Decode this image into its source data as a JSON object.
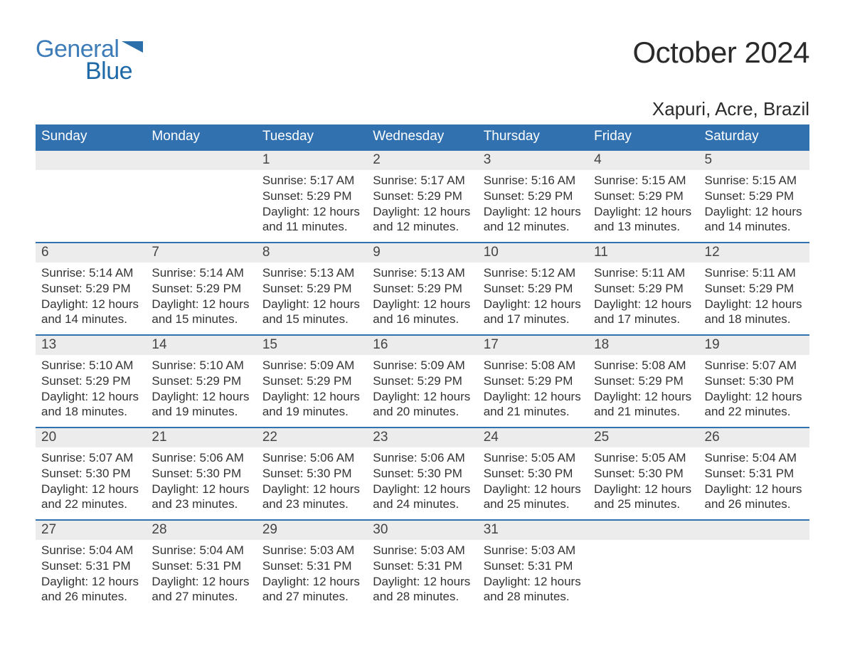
{
  "logo": {
    "word1": "General",
    "word2": "Blue",
    "flag_color": "#2a6fa9"
  },
  "title": "October 2024",
  "location": "Xapuri, Acre, Brazil",
  "colors": {
    "header_bg": "#3171b0",
    "header_text": "#ffffff",
    "daynum_bg": "#ececec",
    "daynum_border": "#3171b0",
    "text": "#333333",
    "page_bg": "#ffffff"
  },
  "day_headers": [
    "Sunday",
    "Monday",
    "Tuesday",
    "Wednesday",
    "Thursday",
    "Friday",
    "Saturday"
  ],
  "labels": {
    "sunrise": "Sunrise:",
    "sunset": "Sunset:",
    "daylight": "Daylight:"
  },
  "weeks": [
    [
      {
        "day": null
      },
      {
        "day": null
      },
      {
        "day": "1",
        "sunrise": "5:17 AM",
        "sunset": "5:29 PM",
        "daylight": "12 hours and 11 minutes."
      },
      {
        "day": "2",
        "sunrise": "5:17 AM",
        "sunset": "5:29 PM",
        "daylight": "12 hours and 12 minutes."
      },
      {
        "day": "3",
        "sunrise": "5:16 AM",
        "sunset": "5:29 PM",
        "daylight": "12 hours and 12 minutes."
      },
      {
        "day": "4",
        "sunrise": "5:15 AM",
        "sunset": "5:29 PM",
        "daylight": "12 hours and 13 minutes."
      },
      {
        "day": "5",
        "sunrise": "5:15 AM",
        "sunset": "5:29 PM",
        "daylight": "12 hours and 14 minutes."
      }
    ],
    [
      {
        "day": "6",
        "sunrise": "5:14 AM",
        "sunset": "5:29 PM",
        "daylight": "12 hours and 14 minutes."
      },
      {
        "day": "7",
        "sunrise": "5:14 AM",
        "sunset": "5:29 PM",
        "daylight": "12 hours and 15 minutes."
      },
      {
        "day": "8",
        "sunrise": "5:13 AM",
        "sunset": "5:29 PM",
        "daylight": "12 hours and 15 minutes."
      },
      {
        "day": "9",
        "sunrise": "5:13 AM",
        "sunset": "5:29 PM",
        "daylight": "12 hours and 16 minutes."
      },
      {
        "day": "10",
        "sunrise": "5:12 AM",
        "sunset": "5:29 PM",
        "daylight": "12 hours and 17 minutes."
      },
      {
        "day": "11",
        "sunrise": "5:11 AM",
        "sunset": "5:29 PM",
        "daylight": "12 hours and 17 minutes."
      },
      {
        "day": "12",
        "sunrise": "5:11 AM",
        "sunset": "5:29 PM",
        "daylight": "12 hours and 18 minutes."
      }
    ],
    [
      {
        "day": "13",
        "sunrise": "5:10 AM",
        "sunset": "5:29 PM",
        "daylight": "12 hours and 18 minutes."
      },
      {
        "day": "14",
        "sunrise": "5:10 AM",
        "sunset": "5:29 PM",
        "daylight": "12 hours and 19 minutes."
      },
      {
        "day": "15",
        "sunrise": "5:09 AM",
        "sunset": "5:29 PM",
        "daylight": "12 hours and 19 minutes."
      },
      {
        "day": "16",
        "sunrise": "5:09 AM",
        "sunset": "5:29 PM",
        "daylight": "12 hours and 20 minutes."
      },
      {
        "day": "17",
        "sunrise": "5:08 AM",
        "sunset": "5:29 PM",
        "daylight": "12 hours and 21 minutes."
      },
      {
        "day": "18",
        "sunrise": "5:08 AM",
        "sunset": "5:29 PM",
        "daylight": "12 hours and 21 minutes."
      },
      {
        "day": "19",
        "sunrise": "5:07 AM",
        "sunset": "5:30 PM",
        "daylight": "12 hours and 22 minutes."
      }
    ],
    [
      {
        "day": "20",
        "sunrise": "5:07 AM",
        "sunset": "5:30 PM",
        "daylight": "12 hours and 22 minutes."
      },
      {
        "day": "21",
        "sunrise": "5:06 AM",
        "sunset": "5:30 PM",
        "daylight": "12 hours and 23 minutes."
      },
      {
        "day": "22",
        "sunrise": "5:06 AM",
        "sunset": "5:30 PM",
        "daylight": "12 hours and 23 minutes."
      },
      {
        "day": "23",
        "sunrise": "5:06 AM",
        "sunset": "5:30 PM",
        "daylight": "12 hours and 24 minutes."
      },
      {
        "day": "24",
        "sunrise": "5:05 AM",
        "sunset": "5:30 PM",
        "daylight": "12 hours and 25 minutes."
      },
      {
        "day": "25",
        "sunrise": "5:05 AM",
        "sunset": "5:30 PM",
        "daylight": "12 hours and 25 minutes."
      },
      {
        "day": "26",
        "sunrise": "5:04 AM",
        "sunset": "5:31 PM",
        "daylight": "12 hours and 26 minutes."
      }
    ],
    [
      {
        "day": "27",
        "sunrise": "5:04 AM",
        "sunset": "5:31 PM",
        "daylight": "12 hours and 26 minutes."
      },
      {
        "day": "28",
        "sunrise": "5:04 AM",
        "sunset": "5:31 PM",
        "daylight": "12 hours and 27 minutes."
      },
      {
        "day": "29",
        "sunrise": "5:03 AM",
        "sunset": "5:31 PM",
        "daylight": "12 hours and 27 minutes."
      },
      {
        "day": "30",
        "sunrise": "5:03 AM",
        "sunset": "5:31 PM",
        "daylight": "12 hours and 28 minutes."
      },
      {
        "day": "31",
        "sunrise": "5:03 AM",
        "sunset": "5:31 PM",
        "daylight": "12 hours and 28 minutes."
      },
      {
        "day": null
      },
      {
        "day": null
      }
    ]
  ]
}
